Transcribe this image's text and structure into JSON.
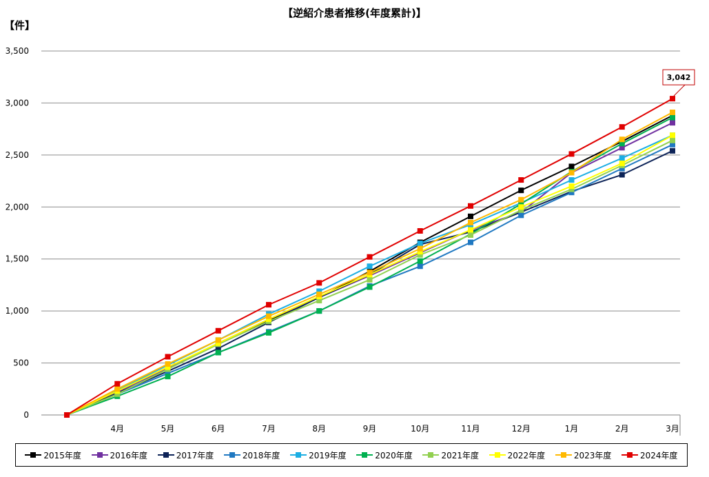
{
  "chart_data": {
    "type": "line",
    "title": "【逆紹介患者推移(年度累計)】",
    "ylabel": "【件】",
    "xlabel": "",
    "categories": [
      "",
      "4月",
      "5月",
      "6月",
      "7月",
      "8月",
      "9月",
      "10月",
      "11月",
      "12月",
      "1月",
      "2月",
      "3月"
    ],
    "ylim": [
      0,
      3500
    ],
    "ytick_labels": [
      "0",
      "500",
      "1,000",
      "1,500",
      "2,000",
      "2,500",
      "3,000",
      "3,500"
    ],
    "grid": true,
    "legend_position": "bottom",
    "annotation": "3,042",
    "series": [
      {
        "name": "2015年度",
        "color": "#000000",
        "values": [
          0,
          230,
          460,
          680,
          910,
          1130,
          1380,
          1660,
          1910,
          2160,
          2390,
          2630,
          2880
        ]
      },
      {
        "name": "2016年度",
        "color": "#7030A0",
        "values": [
          0,
          220,
          450,
          690,
          920,
          1130,
          1340,
          1560,
          1780,
          1950,
          2330,
          2570,
          2810
        ]
      },
      {
        "name": "2017年度",
        "color": "#0D2357",
        "values": [
          0,
          210,
          420,
          640,
          890,
          1130,
          1350,
          1640,
          1760,
          1950,
          2150,
          2310,
          2540
        ]
      },
      {
        "name": "2018年度",
        "color": "#1F78C1",
        "values": [
          0,
          200,
          400,
          600,
          800,
          1000,
          1240,
          1430,
          1660,
          1920,
          2140,
          2370,
          2600
        ]
      },
      {
        "name": "2019年度",
        "color": "#1CAEE3",
        "values": [
          0,
          240,
          480,
          720,
          970,
          1190,
          1430,
          1650,
          1830,
          2040,
          2260,
          2470,
          2690
        ]
      },
      {
        "name": "2020年度",
        "color": "#00B050",
        "values": [
          0,
          180,
          370,
          600,
          790,
          1000,
          1230,
          1480,
          1740,
          2030,
          2340,
          2610,
          2860
        ]
      },
      {
        "name": "2021年度",
        "color": "#92D050",
        "values": [
          0,
          200,
          440,
          680,
          900,
          1100,
          1300,
          1540,
          1730,
          1970,
          2170,
          2400,
          2640
        ]
      },
      {
        "name": "2022年度",
        "color": "#FFFF00",
        "values": [
          0,
          230,
          460,
          690,
          920,
          1140,
          1350,
          1570,
          1780,
          2000,
          2200,
          2420,
          2690
        ]
      },
      {
        "name": "2023年度",
        "color": "#FFB900",
        "values": [
          0,
          250,
          490,
          720,
          950,
          1160,
          1370,
          1600,
          1850,
          2070,
          2330,
          2650,
          2910
        ]
      },
      {
        "name": "2024年度",
        "color": "#E00000",
        "values": [
          0,
          300,
          560,
          810,
          1060,
          1270,
          1520,
          1770,
          2010,
          2260,
          2510,
          2770,
          3042
        ]
      }
    ]
  }
}
